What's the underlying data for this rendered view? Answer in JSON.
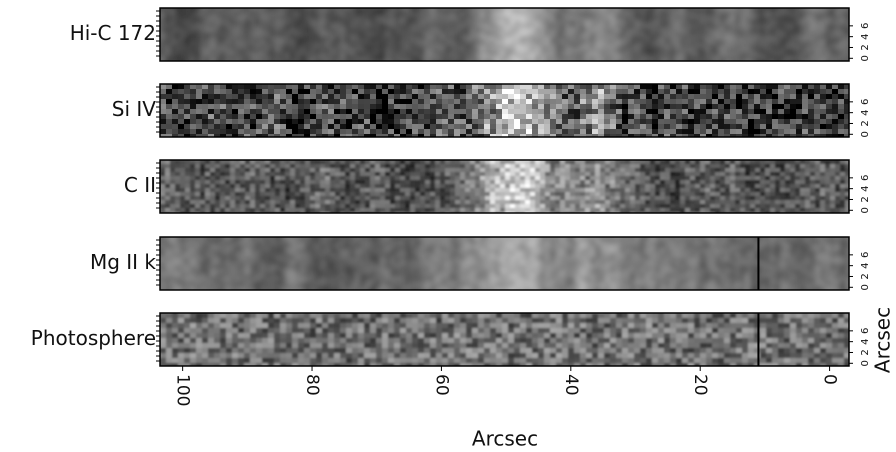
{
  "chart_data": {
    "type": "image-stack",
    "x_label": "Arcsec",
    "y_label": "Arcsec",
    "xlim": [
      103.5,
      -3
    ],
    "xticks": [
      100,
      80,
      60,
      40,
      20,
      0
    ],
    "ylim": [
      -0.5,
      9.3
    ],
    "yticks": [
      0,
      2,
      4,
      6
    ],
    "panels": [
      {
        "label": "Hi-C 172"
      },
      {
        "label": "Si IV"
      },
      {
        "label": "C II"
      },
      {
        "label": "Mg II k",
        "marker_x": 11
      },
      {
        "label": "Photosphere",
        "marker_x": 11
      }
    ]
  }
}
